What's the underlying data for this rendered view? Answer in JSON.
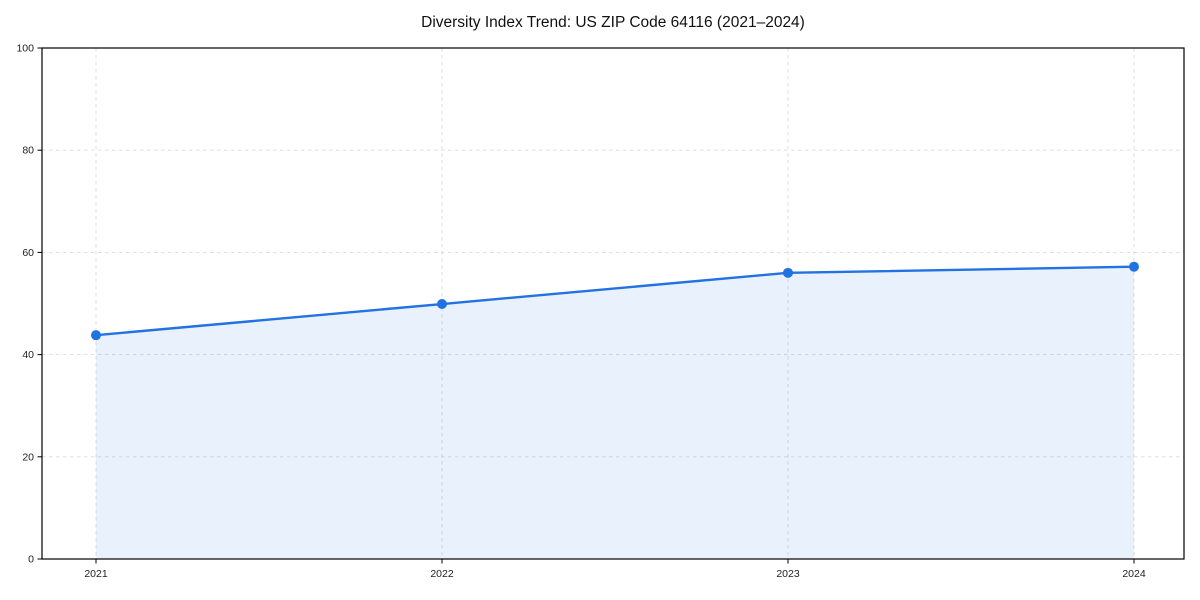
{
  "page": {
    "title": "Diversity Index Trend: US ZIP Code 64116 (2021–2024)"
  },
  "chart_data": {
    "type": "area",
    "title": "Diversity Index Trend: US ZIP Code 64116 (2021–2024)",
    "x": [
      2021,
      2022,
      2023,
      2024
    ],
    "x_tick_labels": [
      "2021",
      "2022",
      "2023",
      "2024"
    ],
    "series": [
      {
        "name": "Diversity Index",
        "values": [
          43.8,
          49.9,
          56.0,
          57.2
        ]
      }
    ],
    "xlabel": "",
    "ylabel": "",
    "ylim": [
      0,
      100
    ],
    "yticks": [
      0,
      20,
      40,
      60,
      80,
      100
    ],
    "grid": true,
    "grid_style": "dashed",
    "legend_position": "none",
    "colors": {
      "line": "#2272e2",
      "marker": "#2272e2",
      "fill": "#2272e2",
      "fill_opacity": 0.1,
      "grid": "#dcdcdc",
      "frame": "#000000",
      "tick_text": "#222222",
      "background": "#ffffff"
    },
    "marker": "circle",
    "frame": true
  }
}
